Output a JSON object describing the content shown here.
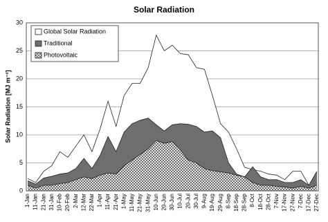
{
  "chart_data": {
    "type": "area",
    "title": "Solar Radiation",
    "y_label": "Solar Radiation [MJ m⁻²]",
    "categories": [
      "1-Jan",
      "11-Jan",
      "21-Jan",
      "31-Jan",
      "10-Feb",
      "20-Feb",
      "2-Mar",
      "12-Mar",
      "22-Mar",
      "1-Apr",
      "11-Apr",
      "21-Apr",
      "1-May",
      "11-May",
      "21-May",
      "31-May",
      "10-Jun",
      "20-Jun",
      "30-Jun",
      "10-Jul",
      "20-Jul",
      "30-Jul",
      "9-Aug",
      "19-Aug",
      "29-Aug",
      "8-Sep",
      "18-Sep",
      "28-Sep",
      "8-Oct",
      "18-Oct",
      "28-Oct",
      "7-Nov",
      "17-Nov",
      "27-Nov",
      "7-Dec",
      "17-Dec",
      "27-Dec"
    ],
    "series": [
      {
        "name": "Global Solar Radiation",
        "color": "#ffffff",
        "values": [
          2.2,
          1.5,
          3.5,
          4.5,
          7,
          6,
          8,
          10,
          7,
          11,
          16,
          11.5,
          17,
          19.2,
          19.2,
          22,
          27.8,
          25,
          26,
          24.5,
          24.3,
          22,
          21.7,
          17,
          12,
          10.5,
          7.5,
          4.2,
          3.8,
          3.5,
          3,
          2.8,
          2,
          3.5,
          3.5,
          1,
          3.5
        ]
      },
      {
        "name": "Traditional",
        "color": "#6e6e6e",
        "values": [
          1.8,
          1.2,
          2.3,
          2.6,
          3,
          3.2,
          4,
          5.8,
          4,
          6.3,
          9.7,
          7,
          10.5,
          12,
          12.6,
          13,
          11.8,
          10.7,
          11.8,
          12,
          11.9,
          11.5,
          10.5,
          10.7,
          9.5,
          5,
          3,
          2.5,
          4.3,
          2.5,
          2,
          2,
          1.5,
          1.5,
          2,
          1,
          3.5
        ]
      },
      {
        "name": "Photovoltaic",
        "color": "#8c8c8c",
        "hatch": true,
        "values": [
          1,
          0.5,
          1,
          1,
          1.3,
          1.5,
          2,
          2.5,
          2.2,
          2.8,
          3.2,
          3,
          4.5,
          5.5,
          6.5,
          7.5,
          9,
          8.5,
          8.8,
          7.3,
          5.5,
          5,
          4,
          3.6,
          3.4,
          3.2,
          2.8,
          2.5,
          1.5,
          1,
          1,
          0.8,
          0.7,
          0.5,
          0.8,
          0.5,
          1
        ]
      }
    ],
    "ylim": [
      0,
      30
    ],
    "yticks": [
      0,
      5,
      10,
      15,
      20,
      25,
      30
    ],
    "grid": true,
    "legend": "top-left"
  }
}
